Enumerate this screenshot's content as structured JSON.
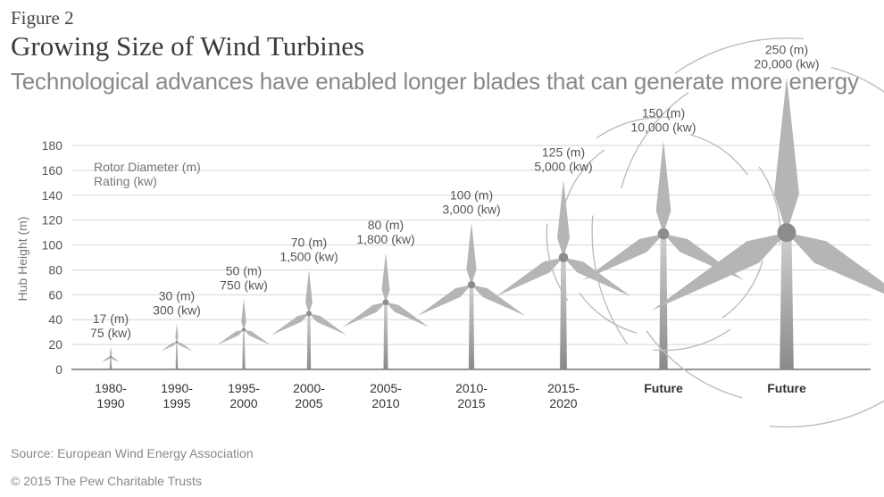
{
  "header": {
    "figure_label": "Figure 2",
    "title": "Growing Size of Wind Turbines",
    "subtitle": "Technological advances have enabled longer blades that can generate more energy"
  },
  "footer": {
    "source": "Source: European Wind Energy Association",
    "copyright": "© 2015 The Pew Charitable Trusts"
  },
  "legend": {
    "line1": "Rotor Diameter (m)",
    "line2": "Rating (kw)"
  },
  "chart_data": {
    "type": "scatter",
    "title": "Growing Size of Wind Turbines",
    "subtitle": "Technological advances have enabled longer blades that can generate more energy",
    "xlabel": "",
    "ylabel": "Hub Height (m)",
    "ylim": [
      0,
      180
    ],
    "yticks": [
      0,
      20,
      40,
      60,
      80,
      100,
      120,
      140,
      160,
      180
    ],
    "grid": true,
    "legend_position": "top-left",
    "categories": [
      [
        "1980-",
        "1990"
      ],
      [
        "1990-",
        "1995"
      ],
      [
        "1995-",
        "2000"
      ],
      [
        "2000-",
        "2005"
      ],
      [
        "2005-",
        "2010"
      ],
      [
        "2010-",
        "2015"
      ],
      [
        "2015-",
        "2020"
      ],
      [
        "Future"
      ],
      [
        "Future"
      ]
    ],
    "hub_height_m": [
      10,
      22,
      32,
      45,
      54,
      68,
      90,
      109,
      110
    ],
    "rotor_diameter_labels": [
      "17 (m)",
      "30 (m)",
      "50 (m)",
      "70 (m)",
      "80 (m)",
      "100 (m)",
      "125 (m)",
      "150 (m)",
      "250 (m)"
    ],
    "rating_labels": [
      "75 (kw)",
      "300 (kw)",
      "750 (kw)",
      "1,500 (kw)",
      "1,800 (kw)",
      "3,000 (kw)",
      "5,000 (kw)",
      "10,000 (kw)",
      "20,000 (kw)"
    ],
    "rotor_diameter_m": [
      17,
      30,
      50,
      70,
      80,
      100,
      125,
      150,
      250
    ],
    "rating_kw": [
      75,
      300,
      750,
      1500,
      1800,
      3000,
      5000,
      10000,
      20000
    ],
    "future_flags": [
      false,
      false,
      false,
      false,
      false,
      false,
      false,
      true,
      true
    ],
    "colors": {
      "gradient_start": "#cfcfcf",
      "gradient_end": "#8a8a8a",
      "grid": "#d6d6d6",
      "axis": "#555555",
      "text": "#555555"
    }
  }
}
